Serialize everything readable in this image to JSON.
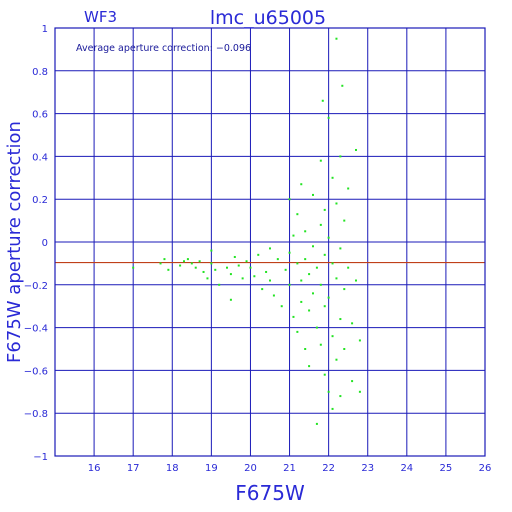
{
  "chart_data": {
    "type": "scatter",
    "camera_label": "WF3",
    "title": "lmc_u65005",
    "annotation": "Average aperture correction: −0.096",
    "xlabel": "F675W",
    "ylabel": "F675W aperture correction",
    "xlim": [
      15,
      26
    ],
    "ylim": [
      -1,
      1
    ],
    "x_ticks": [
      16,
      17,
      18,
      19,
      20,
      21,
      22,
      23,
      24,
      25,
      26
    ],
    "y_ticks": [
      -1,
      -0.8,
      -0.6,
      -0.4,
      -0.2,
      0,
      0.2,
      0.4,
      0.6,
      0.8,
      1
    ],
    "y_tick_labels": [
      "−1",
      "−0.8",
      "−0.6",
      "−0.4",
      "−0.2",
      "0",
      "0.2",
      "0.4",
      "0.6",
      "0.8",
      "1"
    ],
    "grid": true,
    "average_line": {
      "y": -0.096,
      "color": "#c0401a"
    },
    "colors": {
      "axes": "#1a1ab8",
      "points": "#22e322",
      "text": "#2a2ad6"
    },
    "series": [
      {
        "points": [
          [
            17.0,
            -0.12
          ],
          [
            17.7,
            -0.1
          ],
          [
            17.8,
            -0.08
          ],
          [
            17.9,
            -0.13
          ],
          [
            18.2,
            -0.11
          ],
          [
            18.3,
            -0.09
          ],
          [
            18.4,
            -0.08
          ],
          [
            18.5,
            -0.1
          ],
          [
            18.6,
            -0.12
          ],
          [
            18.7,
            -0.09
          ],
          [
            18.8,
            -0.14
          ],
          [
            18.9,
            -0.17
          ],
          [
            19.0,
            -0.04
          ],
          [
            19.0,
            -0.1
          ],
          [
            19.1,
            -0.13
          ],
          [
            19.2,
            -0.2
          ],
          [
            19.4,
            -0.12
          ],
          [
            19.5,
            -0.15
          ],
          [
            19.6,
            -0.07
          ],
          [
            19.7,
            -0.11
          ],
          [
            19.8,
            -0.17
          ],
          [
            19.9,
            -0.09
          ],
          [
            19.5,
            -0.27
          ],
          [
            20.0,
            -0.12
          ],
          [
            20.1,
            -0.16
          ],
          [
            20.2,
            -0.06
          ],
          [
            20.3,
            -0.22
          ],
          [
            20.4,
            -0.14
          ],
          [
            20.5,
            -0.18
          ],
          [
            20.5,
            -0.03
          ],
          [
            20.6,
            -0.25
          ],
          [
            20.7,
            -0.08
          ],
          [
            20.8,
            -0.3
          ],
          [
            20.9,
            -0.13
          ],
          [
            21.0,
            0.2
          ],
          [
            21.0,
            -0.05
          ],
          [
            21.0,
            -0.2
          ],
          [
            21.1,
            0.03
          ],
          [
            21.1,
            -0.35
          ],
          [
            21.2,
            0.13
          ],
          [
            21.2,
            -0.1
          ],
          [
            21.2,
            -0.42
          ],
          [
            21.3,
            0.27
          ],
          [
            21.3,
            -0.18
          ],
          [
            21.3,
            -0.28
          ],
          [
            21.4,
            0.05
          ],
          [
            21.4,
            -0.08
          ],
          [
            21.4,
            -0.5
          ],
          [
            21.5,
            -0.15
          ],
          [
            21.5,
            -0.32
          ],
          [
            21.5,
            -0.58
          ],
          [
            21.6,
            0.22
          ],
          [
            21.6,
            -0.02
          ],
          [
            21.6,
            -0.24
          ],
          [
            21.7,
            -0.12
          ],
          [
            21.7,
            -0.4
          ],
          [
            21.7,
            -0.85
          ],
          [
            21.8,
            0.38
          ],
          [
            21.8,
            0.08
          ],
          [
            21.8,
            -0.2
          ],
          [
            21.8,
            -0.48
          ],
          [
            21.85,
            0.66
          ],
          [
            21.9,
            0.15
          ],
          [
            21.9,
            -0.06
          ],
          [
            21.9,
            -0.3
          ],
          [
            21.9,
            -0.62
          ],
          [
            22.0,
            0.58
          ],
          [
            22.0,
            0.02
          ],
          [
            22.0,
            -0.26
          ],
          [
            22.0,
            -0.7
          ],
          [
            22.1,
            0.3
          ],
          [
            22.1,
            -0.1
          ],
          [
            22.1,
            -0.44
          ],
          [
            22.1,
            -0.78
          ],
          [
            22.2,
            0.95
          ],
          [
            22.2,
            0.18
          ],
          [
            22.2,
            -0.17
          ],
          [
            22.2,
            -0.55
          ],
          [
            22.3,
            0.4
          ],
          [
            22.3,
            -0.03
          ],
          [
            22.3,
            -0.36
          ],
          [
            22.3,
            -0.72
          ],
          [
            22.35,
            0.73
          ],
          [
            22.4,
            0.1
          ],
          [
            22.4,
            -0.22
          ],
          [
            22.4,
            -0.5
          ],
          [
            22.5,
            0.25
          ],
          [
            22.5,
            -0.12
          ],
          [
            22.6,
            -0.38
          ],
          [
            22.6,
            -0.65
          ],
          [
            22.7,
            0.43
          ],
          [
            22.7,
            -0.18
          ],
          [
            22.8,
            -0.46
          ],
          [
            22.8,
            -0.7
          ]
        ]
      }
    ]
  }
}
